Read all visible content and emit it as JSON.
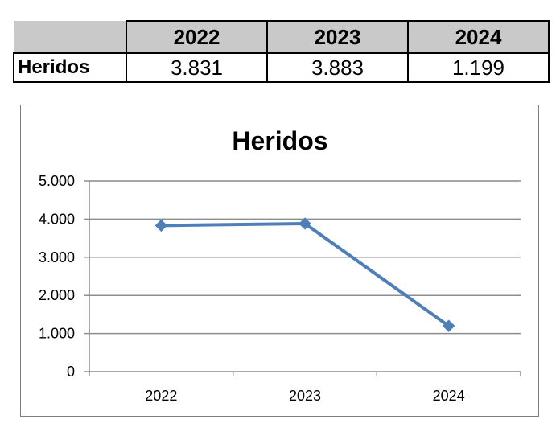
{
  "table": {
    "years": [
      "2022",
      "2023",
      "2024"
    ],
    "row_label": "Heridos",
    "values": [
      "3.831",
      "3.883",
      "1.199"
    ]
  },
  "chart_data": {
    "type": "line",
    "title": "Heridos",
    "categories": [
      "2022",
      "2023",
      "2024"
    ],
    "series": [
      {
        "values": [
          3831,
          3883,
          1199
        ],
        "color": "#4f7fb8"
      }
    ],
    "ylim": [
      0,
      5000
    ],
    "yticks": [
      0,
      1000,
      2000,
      3000,
      4000,
      5000
    ],
    "ytick_labels": [
      "0",
      "1.000",
      "2.000",
      "3.000",
      "4.000",
      "5.000"
    ],
    "grid": true,
    "legend": "none"
  }
}
